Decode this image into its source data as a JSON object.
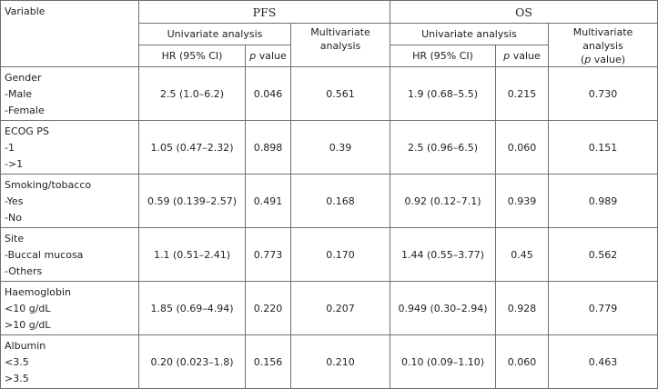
{
  "headers": {
    "variable": "Variable",
    "pfs": "PFS",
    "os": "OS",
    "univariate": "Univariate analysis",
    "multivariate_pfs_line1": "Multivariate",
    "multivariate_pfs_line2": "analysis",
    "multivariate_os_line1": "Multivariate analysis",
    "multivariate_os_p": "p",
    "multivariate_os_rest": " value)",
    "hr": "HR (95% CI)",
    "p": "p",
    "value": " value"
  },
  "rows": [
    {
      "lines": [
        "Gender",
        "-Male",
        "-Female"
      ],
      "pfs_hr": "2.5 (1.0–6.2)",
      "pfs_p": "0.046",
      "pfs_multi": "0.561",
      "os_hr": "1.9 (0.68–5.5)",
      "os_p": "0.215",
      "os_multi": "0.730"
    },
    {
      "lines": [
        "ECOG PS",
        "-1",
        "->1"
      ],
      "pfs_hr": "1.05 (0.47–2.32)",
      "pfs_p": "0.898",
      "pfs_multi": "0.39",
      "os_hr": "2.5 (0.96–6.5)",
      "os_p": "0.060",
      "os_multi": "0.151"
    },
    {
      "lines": [
        "Smoking/tobacco",
        "-Yes",
        "-No"
      ],
      "pfs_hr": "0.59 (0.139–2.57)",
      "pfs_p": "0.491",
      "pfs_multi": "0.168",
      "os_hr": "0.92 (0.12–7.1)",
      "os_p": "0.939",
      "os_multi": "0.989"
    },
    {
      "lines": [
        "Site",
        "-Buccal mucosa",
        "-Others"
      ],
      "pfs_hr": "1.1 (0.51–2.41)",
      "pfs_p": "0.773",
      "pfs_multi": "0.170",
      "os_hr": "1.44 (0.55–3.77)",
      "os_p": "0.45",
      "os_multi": "0.562"
    },
    {
      "lines": [
        "Haemoglobin",
        "<10 g/dL",
        ">10 g/dL"
      ],
      "pfs_hr": "1.85 (0.69–4.94)",
      "pfs_p": "0.220",
      "pfs_multi": "0.207",
      "os_hr": "0.949 (0.30–2.94)",
      "os_p": "0.928",
      "os_multi": "0.779"
    },
    {
      "lines": [
        "Albumin",
        "<3.5",
        ">3.5"
      ],
      "pfs_hr": "0.20 (0.023–1.8)",
      "pfs_p": "0.156",
      "pfs_multi": "0.210",
      "os_hr": "0.10 (0.09–1.10)",
      "os_p": "0.060",
      "os_multi": "0.463"
    }
  ]
}
